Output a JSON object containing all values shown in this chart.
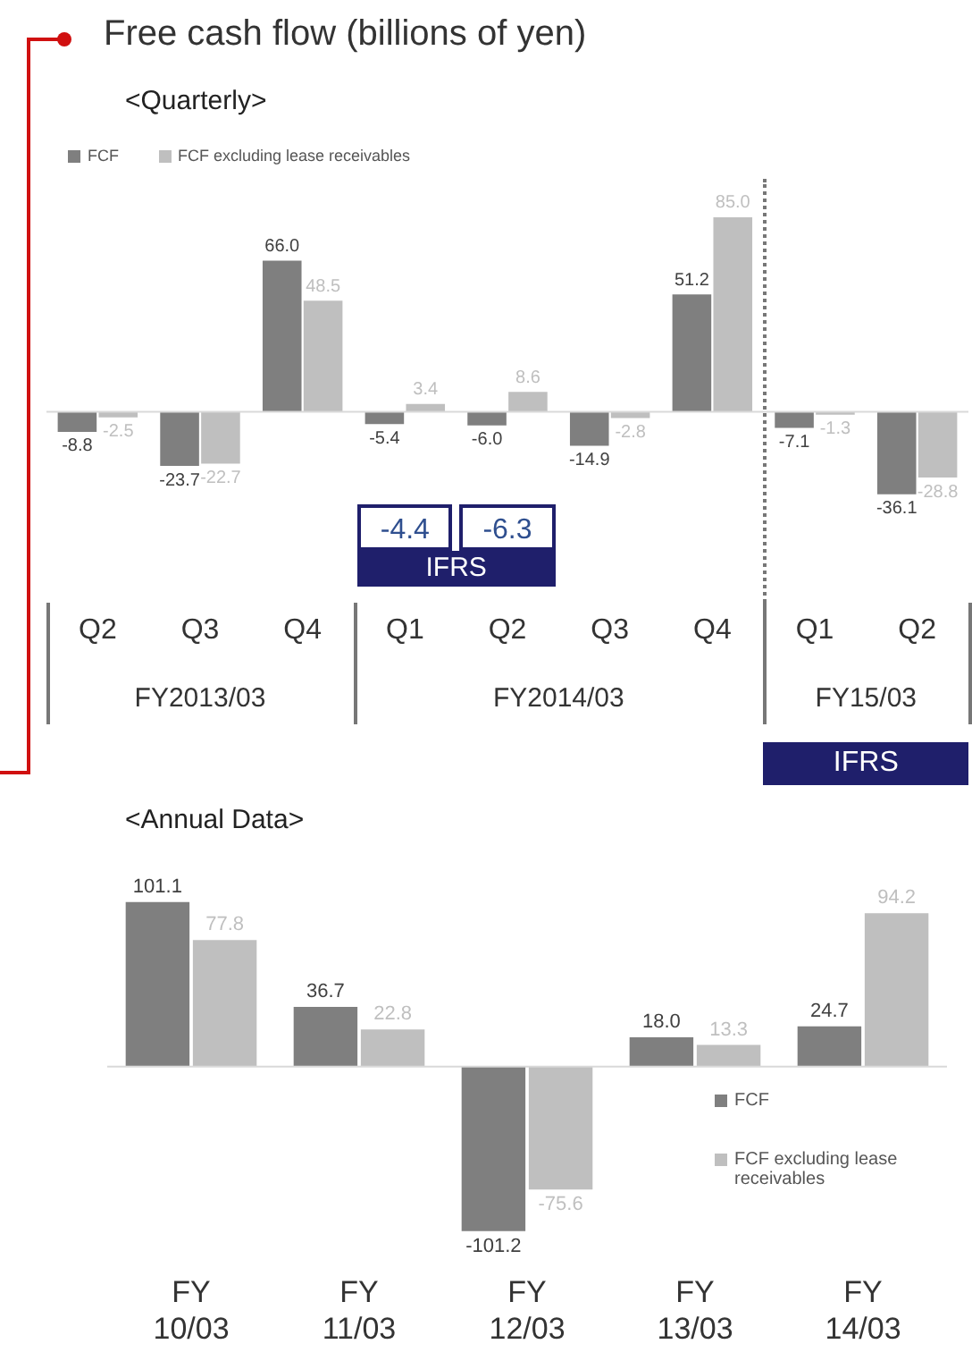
{
  "chart_data": [
    {
      "type": "bar",
      "title": "Free cash flow (billions of yen)",
      "subtitle": "<Quarterly>",
      "categories": [
        "Q2",
        "Q3",
        "Q4",
        "Q1",
        "Q2",
        "Q3",
        "Q4",
        "Q1",
        "Q2"
      ],
      "series": [
        {
          "name": "FCF",
          "color": "#7f7f7f",
          "values": [
            -8.8,
            -23.7,
            66.0,
            -5.4,
            -6.0,
            -14.9,
            51.2,
            -7.1,
            -36.1
          ],
          "value_labels": [
            "-8.8",
            "-23.7",
            "66.0",
            "-5.4",
            "-6.0",
            "-14.9",
            "51.2",
            "-7.1",
            "-36.1"
          ]
        },
        {
          "name": "FCF excluding lease receivables",
          "color": "#bfbfbf",
          "values": [
            -2.5,
            -22.7,
            48.5,
            3.4,
            8.6,
            -2.8,
            85.0,
            -1.3,
            -28.8
          ],
          "value_labels": [
            "-2.5",
            "-22.7",
            "48.5",
            "3.4",
            "8.6",
            "-2.8",
            "85.0",
            "-1.3",
            "-28.8"
          ]
        }
      ],
      "legend": "top left",
      "annotations": [
        "-4.4",
        "-6.3",
        "IFRS",
        "FY2013/03",
        "FY2014/03",
        "FY15/03",
        "IFRS"
      ]
    },
    {
      "type": "bar",
      "subtitle": "<Annual Data>",
      "categories": [
        "FY\n10/03",
        "FY\n11/03",
        "FY\n12/03",
        "FY\n13/03",
        "FY\n14/03"
      ],
      "series": [
        {
          "name": "FCF",
          "color": "#7f7f7f",
          "values": [
            101.1,
            36.7,
            -101.2,
            18.0,
            24.7
          ],
          "value_labels": [
            "101.1",
            "36.7",
            "-101.2",
            "18.0",
            "24.7"
          ]
        },
        {
          "name": "FCF excluding lease receivables",
          "color": "#bfbfbf",
          "values": [
            77.8,
            22.8,
            -75.6,
            13.3,
            94.2
          ],
          "value_labels": [
            "77.8",
            "22.8",
            "-75.6",
            "13.3",
            "94.2"
          ]
        }
      ],
      "legend": "right"
    }
  ]
}
